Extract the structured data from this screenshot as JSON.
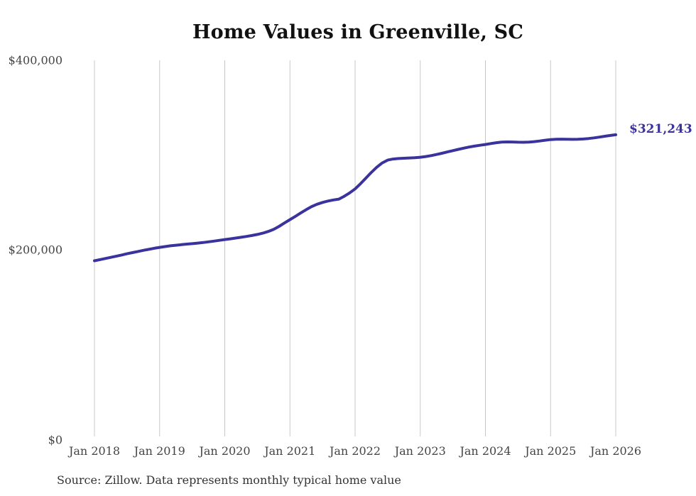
{
  "title": "Home Values in Greenville, SC",
  "end_label": "$321,243",
  "source_note": "Source: Zillow. Data represents monthly typical home value",
  "colors": {
    "line": "#3a329d",
    "end_label": "#3a329d",
    "gridline": "#c9c9c9",
    "title": "#111111",
    "axis_label": "#444444",
    "source": "#333333",
    "background": "#ffffff"
  },
  "chart_data": {
    "type": "line",
    "title": "Home Values in Greenville, SC",
    "xlabel": "",
    "ylabel": "",
    "ylim": [
      0,
      400000
    ],
    "grid": "vertical-only",
    "legend": "none",
    "frequency": "monthly",
    "x_start": "Jan 2018",
    "x_end": "Jan 2026",
    "x_tick_labels": [
      "Jan 2018",
      "Jan 2019",
      "Jan 2020",
      "Jan 2021",
      "Jan 2022",
      "Jan 2023",
      "Jan 2024",
      "Jan 2025",
      "Jan 2026"
    ],
    "y_tick_labels": [
      "$0",
      "$200,000",
      "$400,000"
    ],
    "y_tick_values": [
      0,
      200000,
      400000
    ],
    "final_value": 321243,
    "final_value_label": "$321,243",
    "series": [
      {
        "name": "Typical home value",
        "values": [
          188000,
          189200,
          190400,
          191600,
          192800,
          194100,
          195400,
          196600,
          197800,
          199000,
          200100,
          201200,
          202200,
          203000,
          203800,
          204400,
          205000,
          205600,
          206100,
          206700,
          207300,
          208000,
          208800,
          209600,
          210400,
          211200,
          212000,
          212800,
          213700,
          214700,
          215800,
          217200,
          219000,
          221200,
          224400,
          228000,
          231500,
          235000,
          238600,
          242100,
          245300,
          247800,
          249700,
          251200,
          252300,
          253200,
          256200,
          259800,
          264000,
          269500,
          275500,
          281500,
          287000,
          291500,
          294500,
          295600,
          296100,
          296400,
          296700,
          297000,
          297500,
          298200,
          299200,
          300400,
          301700,
          303100,
          304500,
          305800,
          307100,
          308300,
          309300,
          310200,
          311000,
          312000,
          312900,
          313500,
          313700,
          313600,
          313400,
          313300,
          313500,
          314000,
          314700,
          315500,
          316200,
          316500,
          316600,
          316500,
          316400,
          316500,
          316800,
          317300,
          318000,
          318800,
          319700,
          320500,
          321243
        ]
      }
    ]
  }
}
